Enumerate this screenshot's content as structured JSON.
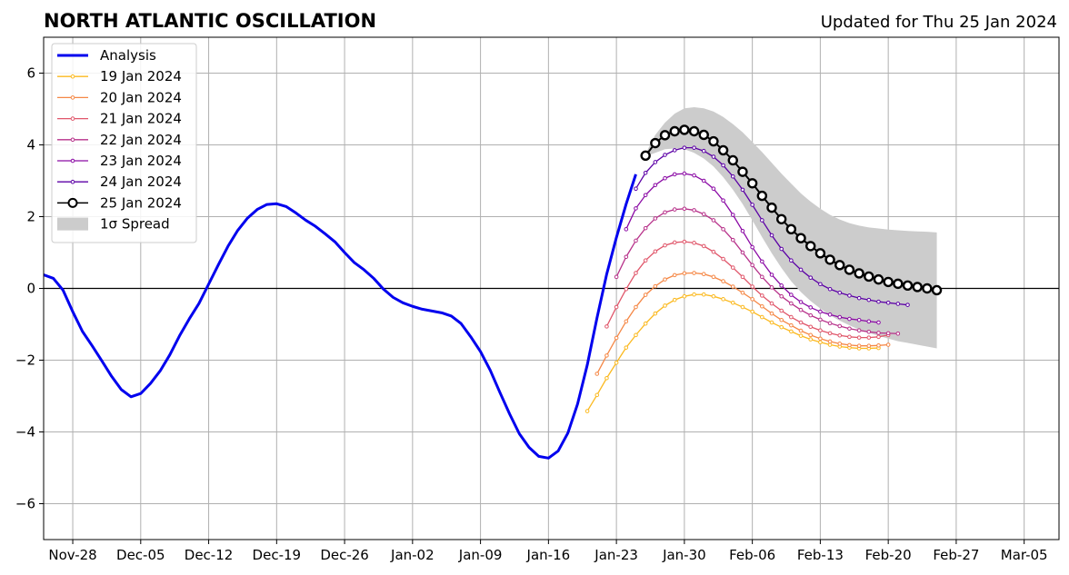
{
  "chart_data": {
    "type": "line",
    "title": "NORTH ATLANTIC OSCILLATION",
    "subtitle": "Updated for Thu 25 Jan 2024",
    "xlabel": "",
    "ylabel": "",
    "ylim": [
      -7,
      7
    ],
    "y_ticks": [
      -6,
      -4,
      -2,
      0,
      2,
      4,
      6
    ],
    "y_tick_labels": [
      "−6",
      "−4",
      "−2",
      "0",
      "2",
      "4",
      "6"
    ],
    "x_start_date": "2023-11-25",
    "x_ticks": [
      {
        "date": "2023-11-28",
        "label": "Nov-28"
      },
      {
        "date": "2023-12-05",
        "label": "Dec-05"
      },
      {
        "date": "2023-12-12",
        "label": "Dec-12"
      },
      {
        "date": "2023-12-19",
        "label": "Dec-19"
      },
      {
        "date": "2023-12-26",
        "label": "Dec-26"
      },
      {
        "date": "2024-01-02",
        "label": "Jan-02"
      },
      {
        "date": "2024-01-09",
        "label": "Jan-09"
      },
      {
        "date": "2024-01-16",
        "label": "Jan-16"
      },
      {
        "date": "2024-01-23",
        "label": "Jan-23"
      },
      {
        "date": "2024-01-30",
        "label": "Jan-30"
      },
      {
        "date": "2024-02-06",
        "label": "Feb-06"
      },
      {
        "date": "2024-02-13",
        "label": "Feb-13"
      },
      {
        "date": "2024-02-20",
        "label": "Feb-20"
      },
      {
        "date": "2024-02-27",
        "label": "Feb-27"
      },
      {
        "date": "2024-03-05",
        "label": "Mar-05"
      }
    ],
    "x_end_date": "2024-03-10",
    "grid": true,
    "legend_position": "top-left",
    "analysis": {
      "name": "Analysis",
      "color": "#0000ee",
      "start_date": "2023-11-25",
      "step_days": 1,
      "values": [
        0.38,
        0.28,
        -0.05,
        -0.65,
        -1.2,
        -1.6,
        -2.02,
        -2.45,
        -2.82,
        -3.02,
        -2.93,
        -2.65,
        -2.3,
        -1.85,
        -1.32,
        -0.85,
        -0.42,
        0.12,
        0.66,
        1.18,
        1.62,
        1.96,
        2.2,
        2.34,
        2.36,
        2.28,
        2.1,
        1.9,
        1.73,
        1.52,
        1.3,
        1.0,
        0.72,
        0.52,
        0.28,
        -0.02,
        -0.25,
        -0.4,
        -0.5,
        -0.58,
        -0.63,
        -0.68,
        -0.77,
        -0.98,
        -1.35,
        -1.76,
        -2.28,
        -2.9,
        -3.5,
        -4.05,
        -4.43,
        -4.68,
        -4.73,
        -4.53,
        -4.03,
        -3.22,
        -2.13,
        -0.82,
        0.4,
        1.42,
        2.35,
        3.18
      ]
    },
    "forecasts": [
      {
        "name": "19 Jan 2024",
        "color": "#fbb91f",
        "start_date": "2024-01-20",
        "step_days": 1,
        "values": [
          -3.42,
          -2.97,
          -2.5,
          -2.07,
          -1.65,
          -1.3,
          -0.98,
          -0.7,
          -0.48,
          -0.32,
          -0.22,
          -0.17,
          -0.17,
          -0.22,
          -0.3,
          -0.4,
          -0.52,
          -0.65,
          -0.8,
          -0.95,
          -1.08,
          -1.2,
          -1.32,
          -1.42,
          -1.5,
          -1.57,
          -1.62,
          -1.65,
          -1.67,
          -1.67,
          -1.66
        ]
      },
      {
        "name": "20 Jan 2024",
        "color": "#f58745",
        "start_date": "2024-01-21",
        "step_days": 1,
        "values": [
          -2.38,
          -1.87,
          -1.38,
          -0.92,
          -0.52,
          -0.18,
          0.06,
          0.25,
          0.37,
          0.42,
          0.43,
          0.4,
          0.32,
          0.2,
          0.05,
          -0.12,
          -0.3,
          -0.5,
          -0.7,
          -0.88,
          -1.03,
          -1.18,
          -1.3,
          -1.4,
          -1.48,
          -1.54,
          -1.58,
          -1.6,
          -1.6,
          -1.59,
          -1.57
        ]
      },
      {
        "name": "21 Jan 2024",
        "color": "#e0566a",
        "start_date": "2024-01-22",
        "step_days": 1,
        "values": [
          -1.06,
          -0.52,
          -0.02,
          0.43,
          0.78,
          1.03,
          1.2,
          1.28,
          1.3,
          1.27,
          1.18,
          1.02,
          0.82,
          0.58,
          0.32,
          0.05,
          -0.2,
          -0.42,
          -0.62,
          -0.8,
          -0.95,
          -1.07,
          -1.17,
          -1.25,
          -1.31,
          -1.35,
          -1.37,
          -1.37,
          -1.35,
          -1.3
        ]
      },
      {
        "name": "22 Jan 2024",
        "color": "#b7318a",
        "start_date": "2024-01-23",
        "step_days": 1,
        "values": [
          0.32,
          0.88,
          1.33,
          1.68,
          1.95,
          2.12,
          2.2,
          2.22,
          2.18,
          2.07,
          1.9,
          1.65,
          1.35,
          1.0,
          0.65,
          0.32,
          0.03,
          -0.22,
          -0.42,
          -0.6,
          -0.75,
          -0.87,
          -0.97,
          -1.05,
          -1.12,
          -1.17,
          -1.21,
          -1.24,
          -1.25,
          -1.26
        ]
      },
      {
        "name": "23 Jan 2024",
        "color": "#8b0aa5",
        "start_date": "2024-01-24",
        "step_days": 1,
        "values": [
          1.65,
          2.23,
          2.6,
          2.88,
          3.07,
          3.18,
          3.2,
          3.15,
          3.0,
          2.78,
          2.45,
          2.05,
          1.6,
          1.15,
          0.75,
          0.38,
          0.08,
          -0.18,
          -0.38,
          -0.53,
          -0.65,
          -0.73,
          -0.8,
          -0.85,
          -0.88,
          -0.92,
          -0.95
        ]
      },
      {
        "name": "24 Jan 2024",
        "color": "#5c01a6",
        "start_date": "2024-01-25",
        "step_days": 1,
        "values": [
          2.78,
          3.22,
          3.52,
          3.72,
          3.85,
          3.92,
          3.92,
          3.83,
          3.67,
          3.43,
          3.12,
          2.75,
          2.33,
          1.9,
          1.48,
          1.1,
          0.78,
          0.52,
          0.3,
          0.12,
          -0.02,
          -0.12,
          -0.2,
          -0.27,
          -0.32,
          -0.37,
          -0.4,
          -0.43,
          -0.46
        ]
      },
      {
        "name": "25 Jan 2024",
        "color": "#000000",
        "start_date": "2024-01-26",
        "step_days": 1,
        "values": [
          3.7,
          4.05,
          4.27,
          4.38,
          4.42,
          4.38,
          4.28,
          4.1,
          3.85,
          3.57,
          3.25,
          2.93,
          2.58,
          2.25,
          1.93,
          1.65,
          1.4,
          1.18,
          0.98,
          0.8,
          0.65,
          0.52,
          0.42,
          0.33,
          0.25,
          0.18,
          0.13,
          0.08,
          0.04,
          0.0,
          -0.05
        ]
      }
    ],
    "spread": {
      "name": "1σ Spread",
      "color": "#cccccc",
      "start_date": "2024-01-26",
      "step_days": 1,
      "upper": [
        3.75,
        4.28,
        4.62,
        4.87,
        5.02,
        5.05,
        5.02,
        4.93,
        4.78,
        4.58,
        4.35,
        4.08,
        3.8,
        3.5,
        3.2,
        2.92,
        2.65,
        2.42,
        2.22,
        2.05,
        1.92,
        1.82,
        1.75,
        1.7,
        1.67,
        1.64,
        1.62,
        1.6,
        1.59,
        1.58,
        1.56
      ],
      "lower": [
        3.68,
        3.78,
        3.88,
        3.9,
        3.88,
        3.78,
        3.62,
        3.4,
        3.1,
        2.75,
        2.35,
        1.9,
        1.43,
        0.98,
        0.57,
        0.2,
        -0.1,
        -0.35,
        -0.56,
        -0.75,
        -0.9,
        -1.03,
        -1.15,
        -1.24,
        -1.32,
        -1.4,
        -1.47,
        -1.52,
        -1.57,
        -1.62,
        -1.67
      ]
    }
  }
}
